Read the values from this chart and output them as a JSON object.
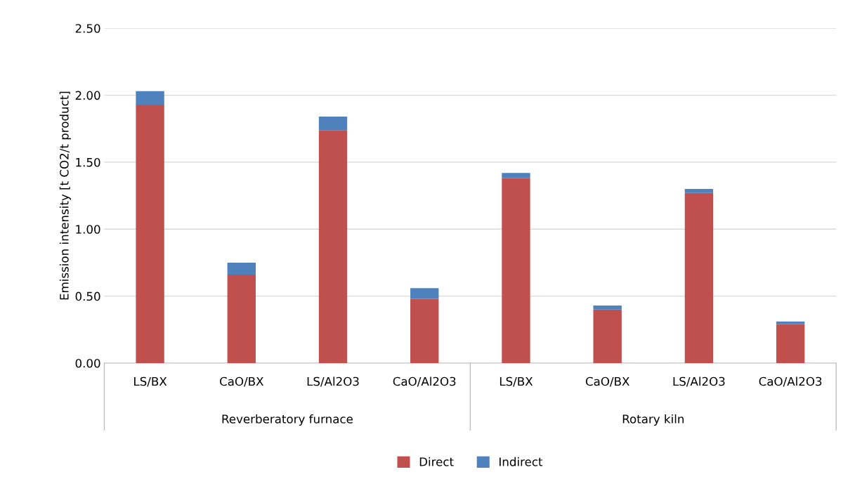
{
  "chart_data": {
    "type": "bar",
    "stacked": true,
    "ylabel": "Emission intensity [t CO2/t product]",
    "categories": [
      "LS/BX",
      "CaO/BX",
      "LS/Al2O3",
      "CaO/Al2O3",
      "LS/BX",
      "CaO/BX",
      "LS/Al2O3",
      "CaO/Al2O3"
    ],
    "annotations": [
      "Reverberatory furnace",
      "Rotary kiln"
    ],
    "series": [
      {
        "name": "Direct",
        "color": "#c0504d",
        "values": [
          1.93,
          0.66,
          1.74,
          0.48,
          1.38,
          0.4,
          1.27,
          0.29
        ]
      },
      {
        "name": "Indirect",
        "color": "#4f81bd",
        "values": [
          0.1,
          0.09,
          0.1,
          0.08,
          0.04,
          0.03,
          0.03,
          0.02
        ]
      }
    ],
    "ylim": [
      0,
      2.5
    ],
    "yticks": [
      {
        "value": 0,
        "label": "0.00"
      },
      {
        "value": 0.5,
        "label": "0.50"
      },
      {
        "value": 1.0,
        "label": "1.00"
      },
      {
        "value": 1.5,
        "label": "1.50"
      },
      {
        "value": 2.0,
        "label": "2.00"
      },
      {
        "value": 2.5,
        "label": "2.50"
      }
    ],
    "grid": "y",
    "legend": "bottom"
  }
}
